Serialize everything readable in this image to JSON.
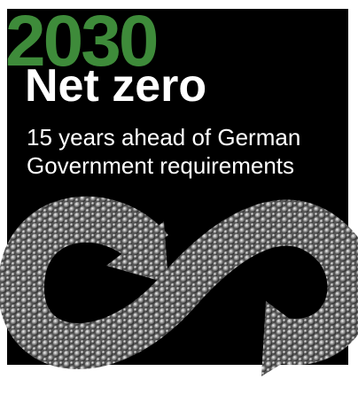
{
  "graphic": {
    "year": "2030",
    "title": "Net zero",
    "subtitle": [
      "15 years ahead of German",
      "Government requirements"
    ]
  }
}
